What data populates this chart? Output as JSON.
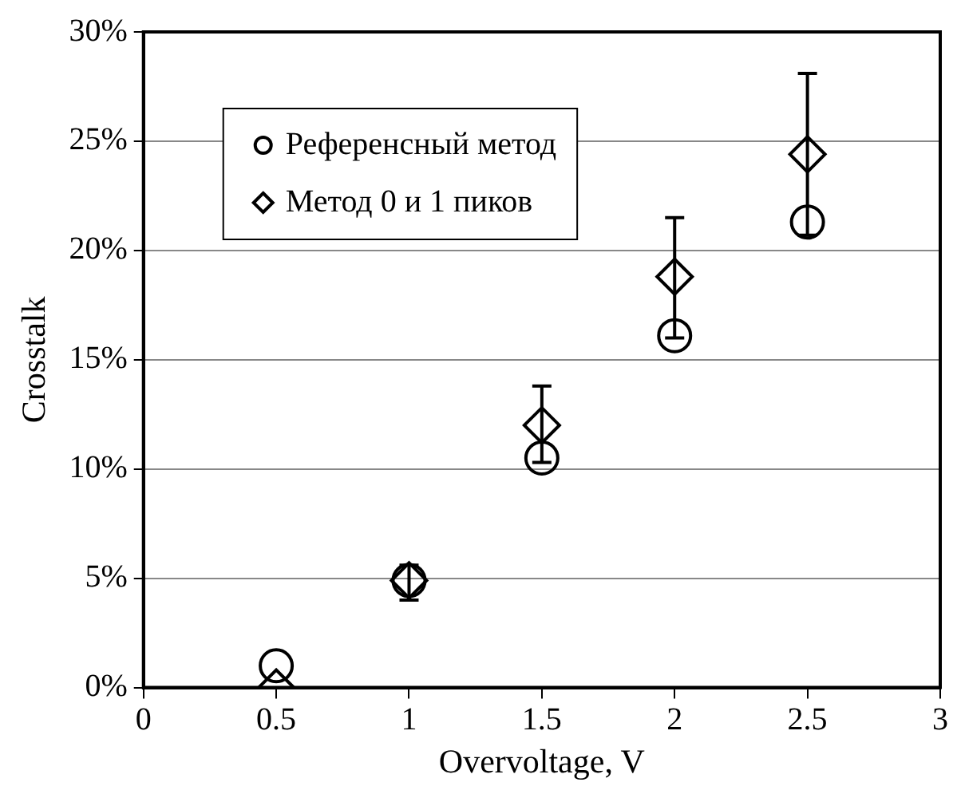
{
  "chart_data": {
    "type": "scatter",
    "xlabel": "Overvoltage, V",
    "ylabel": "Crosstalk",
    "x": [
      0.5,
      1,
      1.5,
      2,
      2.5
    ],
    "series": [
      {
        "name": "Референсный метод",
        "color": "#000000",
        "marker": "circle",
        "values": [
          1.0,
          4.9,
          10.5,
          16.1,
          21.3
        ]
      },
      {
        "name": "Метод 0 и 1 пиков",
        "color": "#000000",
        "marker": "diamond",
        "values": [
          0,
          4.9,
          12.0,
          18.8,
          24.4
        ],
        "errors": [
          null,
          [
            4.0,
            5.6
          ],
          [
            10.3,
            13.8
          ],
          [
            16.0,
            21.5
          ],
          [
            20.7,
            28.1
          ]
        ]
      }
    ],
    "xlim": [
      0,
      3
    ],
    "xticks": [
      0,
      0.5,
      1,
      1.5,
      2,
      2.5,
      3
    ],
    "ylim": [
      0,
      30
    ],
    "yticks": [
      {
        "value": 0,
        "label": "0%"
      },
      {
        "value": 5,
        "label": "5%"
      },
      {
        "value": 10,
        "label": "10%"
      },
      {
        "value": 15,
        "label": "15%"
      },
      {
        "value": 20,
        "label": "20%"
      },
      {
        "value": 25,
        "label": "25%"
      },
      {
        "value": 30,
        "label": "30%"
      }
    ],
    "grid": "y",
    "legend": "top left"
  }
}
